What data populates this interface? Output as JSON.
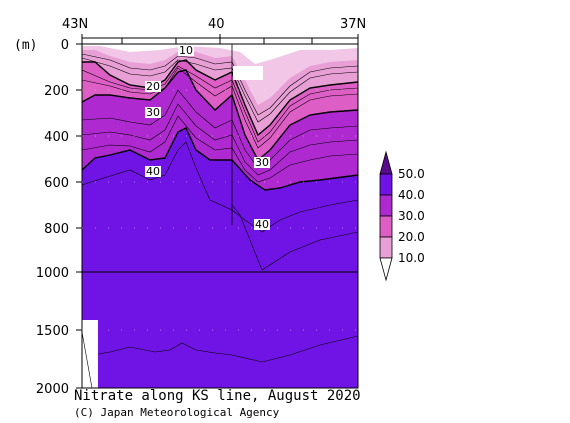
{
  "chart_data": {
    "type": "heatmap",
    "title": "Nitrate along KS line, August 2020",
    "credit": "(C) Japan Meteorological Agency",
    "y_unit": "(m)",
    "x_ticks": [
      "43N",
      "40",
      "37N"
    ],
    "y_ticks_upper": [
      "0",
      "200",
      "400",
      "600",
      "800",
      "1000"
    ],
    "y_ticks_lower": [
      "1500",
      "2000"
    ],
    "ylim": [
      0,
      2000
    ],
    "y_axis_break_depth": 1000,
    "colorbar": {
      "levels": [
        10.0,
        20.0,
        30.0,
        40.0,
        50.0
      ],
      "labels": [
        "50.0",
        "40.0",
        "30.0",
        "20.0",
        "10.0"
      ],
      "colors": [
        "#ffffff",
        "#f2c6e6",
        "#e79fd6",
        "#dd5fc6",
        "#ae2ad0",
        "#7014e5",
        "#5a0a8c"
      ]
    },
    "contour_labels": [
      {
        "text": "10",
        "lat": 41.1,
        "depth": 20
      },
      {
        "text": "20",
        "lat": 41.9,
        "depth": 185
      },
      {
        "text": "30",
        "lat": 41.9,
        "depth": 290
      },
      {
        "text": "40",
        "lat": 41.9,
        "depth": 530
      },
      {
        "text": "30",
        "lat": 39.3,
        "depth": 510
      },
      {
        "text": "40",
        "lat": 39.3,
        "depth": 790
      }
    ]
  }
}
